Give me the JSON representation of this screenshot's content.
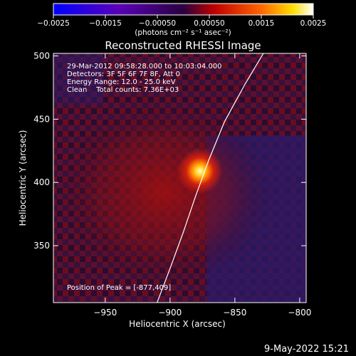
{
  "chart_data": {
    "type": "heatmap",
    "title": "Reconstructed RHESSI Image",
    "xlabel": "Heliocentric X (arcsec)",
    "ylabel": "Heliocentric Y (arcsec)",
    "xlim": [
      -990,
      -795
    ],
    "ylim": [
      305,
      502
    ],
    "xticks": [
      -950,
      -900,
      -850,
      -800
    ],
    "yticks": [
      350,
      400,
      450,
      500
    ],
    "xtick_labels": [
      "−950",
      "−900",
      "−850",
      "−800"
    ],
    "ytick_labels": [
      "350",
      "400",
      "450",
      "500"
    ],
    "colorbar": {
      "range": [
        -0.0025,
        0.0025
      ],
      "ticks": [
        -0.0025,
        -0.0015,
        -0.0005,
        0.0005,
        0.0015,
        0.0025
      ],
      "tick_labels": [
        "−0.0025",
        "−0.0015",
        "−0.00050",
        "0.00050",
        "0.0015",
        "0.0025"
      ],
      "units": "(photons cm⁻² s⁻¹ asec⁻²)",
      "colormap": "rainbow-blue-to-white"
    },
    "annotations": [
      "29-Mar-2012 09:58:28.000 to 10:03:04.000",
      "Detectors: 3F 5F 6F 7F 8F, Att 0",
      "Energy Range: 12.0 - 25.0 keV",
      "Clean    Total counts: 7.36E+03"
    ],
    "peak": {
      "x": -877,
      "y": 409,
      "label": "Position of Peak = [-877,409]"
    },
    "limb_curve": [
      [
        -910,
        305
      ],
      [
        -900,
        332
      ],
      [
        -890,
        360
      ],
      [
        -880,
        390
      ],
      [
        -870,
        418
      ],
      [
        -858,
        448
      ],
      [
        -842,
        478
      ],
      [
        -828,
        502
      ]
    ],
    "footer": "9-May-2022 15:21"
  },
  "colors": {
    "background": "#000000",
    "axes": "#ffffff",
    "peak": "#ffffe0",
    "core": "#ff8800",
    "mid": "#c81010",
    "faint": "#601060",
    "negative": "#2a1a6a"
  }
}
